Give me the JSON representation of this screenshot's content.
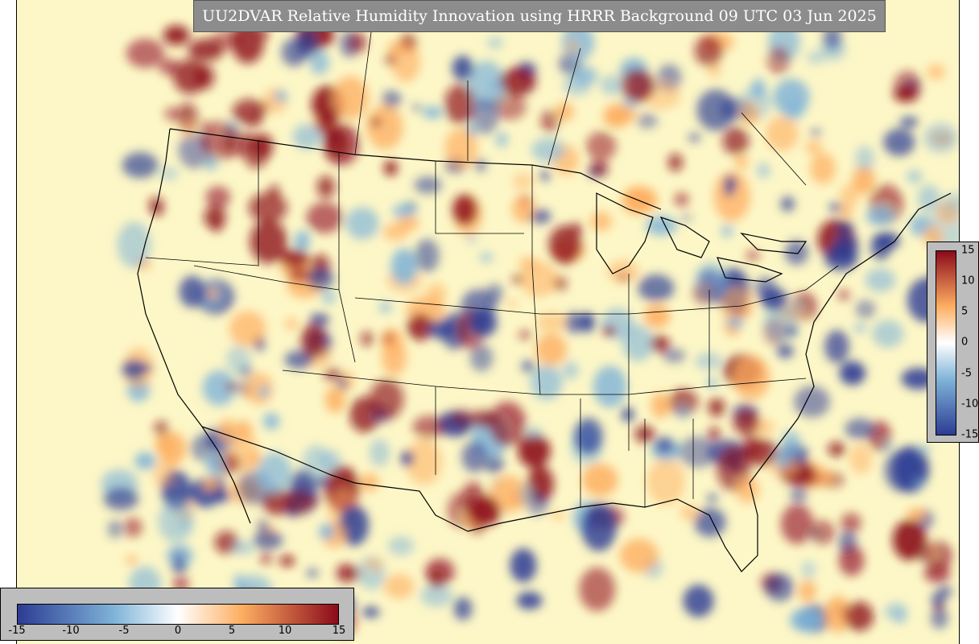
{
  "title": "UU2DVAR Relative Humidity Innovation using HRRR Background 09 UTC 03 Jun 2025",
  "colorbar_vertical": {
    "ticks": [
      "15",
      "10",
      "5",
      "0",
      "-5",
      "-10",
      "-15"
    ]
  },
  "colorbar_horizontal": {
    "ticks": [
      "-15",
      "-10",
      "-5",
      "0",
      "5",
      "10",
      "15"
    ]
  },
  "colormap": {
    "low": "#2c3c94",
    "mid_low": "#7fb3d8",
    "zero": "#ffffff",
    "mid_high": "#fdae61",
    "high": "#8b0a1a",
    "background": "#fdf7c7"
  }
}
